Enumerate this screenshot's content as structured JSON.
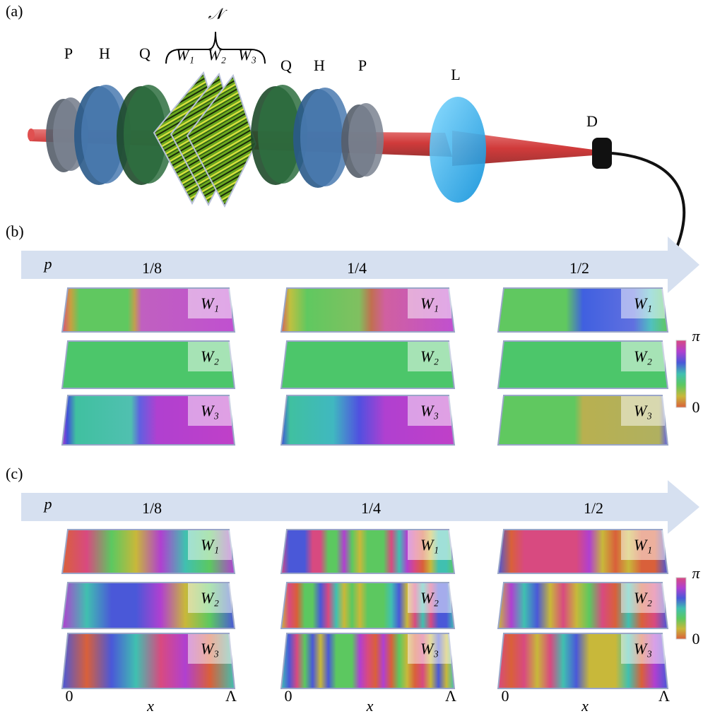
{
  "panel_a": {
    "label": "(a)",
    "components_before": [
      "P",
      "H",
      "Q"
    ],
    "group_label": "𝒩",
    "plates": [
      "W₁",
      "W₂",
      "W₃"
    ],
    "components_after": [
      "Q",
      "H",
      "P"
    ],
    "lens": "L",
    "detector": "D"
  },
  "panel_b": {
    "label": "(b)",
    "parameter": "p",
    "columns": [
      "1/8",
      "1/4",
      "1/2"
    ],
    "plates": [
      "W₁",
      "W₂",
      "W₃"
    ],
    "colorbar": {
      "max": "π",
      "min": "0"
    }
  },
  "panel_c": {
    "label": "(c)",
    "parameter": "p",
    "columns": [
      "1/8",
      "1/4",
      "1/2"
    ],
    "plates": [
      "W₁",
      "W₂",
      "W₃"
    ],
    "colorbar": {
      "max": "π",
      "min": "0"
    },
    "axis": {
      "start": "0",
      "label": "x",
      "end": "Λ"
    }
  }
}
